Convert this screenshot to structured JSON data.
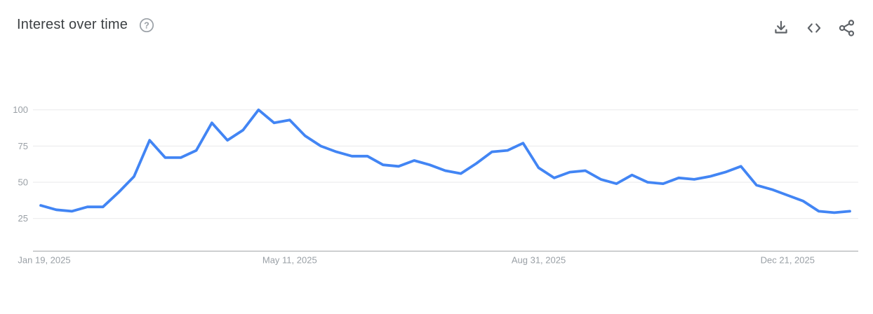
{
  "header": {
    "title": "Interest over time"
  },
  "icons": {
    "help_glyph": "?",
    "actions": [
      "download-icon",
      "embed-icon",
      "share-icon"
    ]
  },
  "colors": {
    "line": "#4285f4",
    "grid": "#e9e9eb",
    "axis": "#aaadb0",
    "tick_label": "#9aa0a6",
    "title": "#3c4043",
    "icon": "#5f6368"
  },
  "chart_data": {
    "type": "line",
    "title": "Interest over time",
    "xlabel": "",
    "ylabel": "",
    "ylim": [
      0,
      100
    ],
    "grid": "horizontal",
    "legend": "none",
    "y_ticks": [
      25,
      50,
      75,
      100
    ],
    "x": [
      "Jan 19, 2025",
      "Jan 26, 2025",
      "Feb 2, 2025",
      "Feb 9, 2025",
      "Feb 16, 2025",
      "Feb 23, 2025",
      "Mar 2, 2025",
      "Mar 9, 2025",
      "Mar 16, 2025",
      "Mar 23, 2025",
      "Mar 30, 2025",
      "Apr 6, 2025",
      "Apr 13, 2025",
      "Apr 20, 2025",
      "Apr 27, 2025",
      "May 4, 2025",
      "May 11, 2025",
      "May 18, 2025",
      "May 25, 2025",
      "Jun 1, 2025",
      "Jun 8, 2025",
      "Jun 15, 2025",
      "Jun 22, 2025",
      "Jun 29, 2025",
      "Jul 6, 2025",
      "Jul 13, 2025",
      "Jul 20, 2025",
      "Jul 27, 2025",
      "Aug 3, 2025",
      "Aug 10, 2025",
      "Aug 17, 2025",
      "Aug 24, 2025",
      "Aug 31, 2025",
      "Sep 7, 2025",
      "Sep 14, 2025",
      "Sep 21, 2025",
      "Sep 28, 2025",
      "Oct 5, 2025",
      "Oct 12, 2025",
      "Oct 19, 2025",
      "Oct 26, 2025",
      "Nov 2, 2025",
      "Nov 9, 2025",
      "Nov 16, 2025",
      "Nov 23, 2025",
      "Nov 30, 2025",
      "Dec 7, 2025",
      "Dec 14, 2025",
      "Dec 21, 2025",
      "Dec 28, 2025",
      "Jan 4, 2026",
      "Jan 11, 2026",
      "Jan 18, 2026"
    ],
    "values": [
      34,
      31,
      30,
      33,
      33,
      43,
      54,
      79,
      67,
      67,
      72,
      91,
      79,
      86,
      100,
      91,
      93,
      82,
      75,
      71,
      68,
      68,
      62,
      61,
      65,
      62,
      58,
      56,
      63,
      71,
      72,
      77,
      60,
      53,
      57,
      58,
      52,
      49,
      55,
      50,
      49,
      53,
      52,
      54,
      57,
      61,
      48,
      45,
      41,
      37,
      30,
      29,
      30
    ],
    "x_tick_indices": [
      0,
      16,
      32,
      48
    ],
    "x_tick_labels": [
      "Jan 19, 2025",
      "May 11, 2025",
      "Aug 31, 2025",
      "Dec 21, 2025"
    ]
  }
}
